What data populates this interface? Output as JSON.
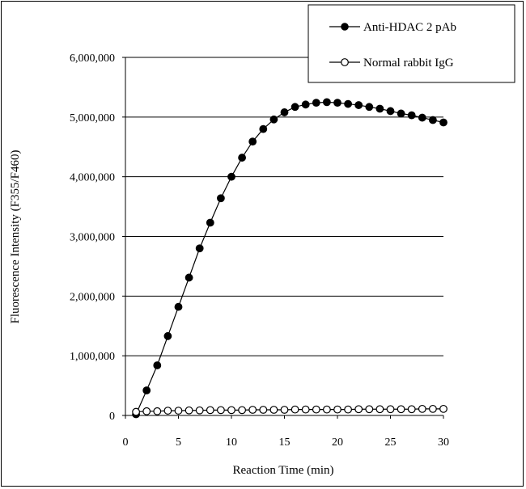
{
  "chart_data": {
    "type": "line",
    "title": "",
    "xlabel": "Reaction Time (min)",
    "ylabel": "Fluorescence Intensity (F355/F460)",
    "xlim": [
      0,
      30
    ],
    "ylim": [
      0,
      6000000
    ],
    "xticks": [
      0,
      5,
      10,
      15,
      20,
      25,
      30
    ],
    "yticks": [
      0,
      1000000,
      2000000,
      3000000,
      4000000,
      5000000,
      6000000
    ],
    "xtick_labels": [
      "0",
      "5",
      "10",
      "15",
      "20",
      "25",
      "30"
    ],
    "ytick_labels": [
      "0",
      "1,000,000",
      "2,000,000",
      "3,000,000",
      "4,000,000",
      "5,000,000",
      "6,000,000"
    ],
    "grid": "horizontal",
    "legend_position": "top-right",
    "series": [
      {
        "name": "Anti-HDAC 2 pAb",
        "marker": "filled-circle",
        "color": "#000000",
        "x": [
          1,
          2,
          3,
          4,
          5,
          6,
          7,
          8,
          9,
          10,
          11,
          12,
          13,
          14,
          15,
          16,
          17,
          18,
          19,
          20,
          21,
          22,
          23,
          24,
          25,
          26,
          27,
          28,
          29,
          30
        ],
        "y": [
          20000,
          420000,
          840000,
          1330000,
          1820000,
          2310000,
          2800000,
          3230000,
          3640000,
          4000000,
          4320000,
          4590000,
          4800000,
          4960000,
          5080000,
          5170000,
          5210000,
          5240000,
          5250000,
          5240000,
          5220000,
          5200000,
          5170000,
          5140000,
          5100000,
          5060000,
          5030000,
          4990000,
          4950000,
          4910000
        ]
      },
      {
        "name": "Normal rabbit IgG",
        "marker": "open-circle",
        "color": "#000000",
        "x": [
          1,
          2,
          3,
          4,
          5,
          6,
          7,
          8,
          9,
          10,
          11,
          12,
          13,
          14,
          15,
          16,
          17,
          18,
          19,
          20,
          21,
          22,
          23,
          24,
          25,
          26,
          27,
          28,
          29,
          30
        ],
        "y": [
          60000,
          70000,
          70000,
          80000,
          80000,
          85000,
          85000,
          90000,
          90000,
          90000,
          90000,
          95000,
          95000,
          95000,
          95000,
          100000,
          100000,
          100000,
          100000,
          100000,
          100000,
          105000,
          105000,
          105000,
          105000,
          105000,
          105000,
          110000,
          110000,
          110000
        ]
      }
    ]
  }
}
